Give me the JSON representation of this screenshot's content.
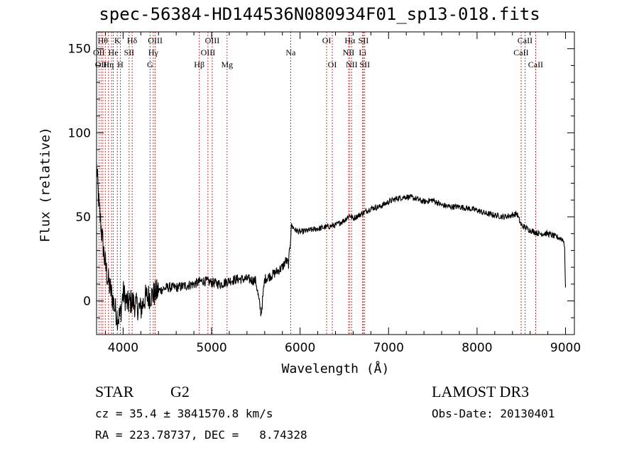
{
  "chart_data": {
    "type": "line",
    "title": "spec-56384-HD144536N080934F01_sp13-018.fits",
    "xlabel": "Wavelength (Å)",
    "ylabel": "Flux (relative)",
    "xlim": [
      3700,
      9100
    ],
    "ylim": [
      -20,
      160
    ],
    "xticks": [
      4000,
      5000,
      6000,
      7000,
      8000,
      9000
    ],
    "yticks": [
      0,
      50,
      100,
      150
    ],
    "grid": false,
    "series": [
      {
        "x": [
          3700,
          3730,
          3760,
          3790,
          3820,
          3850,
          3880,
          3910,
          3940,
          3970,
          4000,
          4050,
          4100,
          4150,
          4200,
          4250,
          4300,
          4350,
          4400,
          4500,
          4600,
          4700,
          4800,
          4900,
          5000,
          5100,
          5200,
          5300,
          5400,
          5500,
          5560,
          5600,
          5700,
          5750,
          5800,
          5840,
          5870,
          5890,
          5900,
          5950,
          6000,
          6100,
          6200,
          6300,
          6400,
          6500,
          6560,
          6600,
          6700,
          6800,
          6900,
          7000,
          7100,
          7200,
          7300,
          7400,
          7500,
          7600,
          7700,
          7800,
          7900,
          8000,
          8100,
          8200,
          8300,
          8400,
          8450,
          8500,
          8600,
          8700,
          8800,
          8900,
          8950,
          8980,
          8990,
          9000
        ],
        "y": [
          80,
          55,
          40,
          25,
          15,
          8,
          2,
          -5,
          -10,
          -8,
          5,
          -2,
          0,
          -3,
          -5,
          2,
          3,
          4,
          6,
          8,
          8,
          9,
          10,
          12,
          11,
          10,
          12,
          13,
          13,
          12,
          -8,
          13,
          16,
          18,
          20,
          24,
          22,
          35,
          45,
          42,
          41,
          42,
          43,
          44,
          45,
          48,
          51,
          49,
          52,
          55,
          56,
          59,
          61,
          62,
          61,
          59,
          60,
          57,
          56,
          56,
          55,
          54,
          52,
          51,
          50,
          51,
          52,
          45,
          42,
          40,
          40,
          38,
          37,
          36,
          30,
          8
        ]
      }
    ],
    "line_markers": [
      {
        "x": 3727,
        "label": "OII",
        "row": 1
      },
      {
        "x": 3750,
        "label": "OII",
        "row": 2
      },
      {
        "x": 3771,
        "label": "Hθ",
        "row": 0
      },
      {
        "x": 3798,
        "label": "",
        "row": 0
      },
      {
        "x": 3835,
        "label": "Hη",
        "row": 2
      },
      {
        "x": 3869,
        "label": "",
        "row": 0
      },
      {
        "x": 3889,
        "label": "He",
        "row": 1
      },
      {
        "x": 3934,
        "label": "K",
        "row": 0
      },
      {
        "x": 3968,
        "label": "H",
        "row": 2
      },
      {
        "x": 4068,
        "label": "SII",
        "row": 1
      },
      {
        "x": 4102,
        "label": "Hδ",
        "row": 0
      },
      {
        "x": 4304,
        "label": "G",
        "row": 2
      },
      {
        "x": 4341,
        "label": "Hγ",
        "row": 1
      },
      {
        "x": 4363,
        "label": "OIII",
        "row": 0
      },
      {
        "x": 4861,
        "label": "Hβ",
        "row": 2
      },
      {
        "x": 4959,
        "label": "OIII",
        "row": 1
      },
      {
        "x": 5007,
        "label": "OIII",
        "row": 0
      },
      {
        "x": 5175,
        "label": "Mg",
        "row": 2
      },
      {
        "x": 5894,
        "label": "Na",
        "row": 1
      },
      {
        "x": 6300,
        "label": "OI",
        "row": 0
      },
      {
        "x": 6364,
        "label": "OI",
        "row": 2
      },
      {
        "x": 6548,
        "label": "NII",
        "row": 1
      },
      {
        "x": 6563,
        "label": "Hα",
        "row": 0
      },
      {
        "x": 6583,
        "label": "NII",
        "row": 2
      },
      {
        "x": 6707,
        "label": "Li",
        "row": 1
      },
      {
        "x": 6716,
        "label": "SII",
        "row": 0
      },
      {
        "x": 6731,
        "label": "SII",
        "row": 2
      },
      {
        "x": 8498,
        "label": "CaII",
        "row": 1
      },
      {
        "x": 8542,
        "label": "CaII",
        "row": 0
      },
      {
        "x": 8662,
        "label": "CaII",
        "row": 2
      }
    ]
  },
  "info": {
    "object_class": "STAR",
    "subclass": "G2",
    "survey": "LAMOST DR3",
    "cz": "cz = 35.4 ± 3841570.8 km/s",
    "obs_date": "Obs-Date: 20130401",
    "coords": "RA = 223.78737, DEC =   8.74328"
  },
  "colors": {
    "spectrum": "#000000",
    "line_markers": "#c00000",
    "axes": "#000000"
  }
}
